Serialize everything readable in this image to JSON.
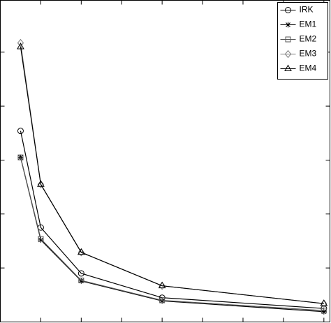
{
  "chart_data": {
    "type": "line",
    "x": [
      0.5,
      1,
      2,
      4,
      8
    ],
    "xlim": [
      0,
      8.15
    ],
    "xticks": [
      1,
      2,
      3,
      4,
      5,
      6,
      7,
      8
    ],
    "ylim": [
      0,
      5.96
    ],
    "yticks": [
      1,
      2,
      3,
      4,
      5
    ],
    "legend": "upper right",
    "series": [
      {
        "name": "IRK",
        "color": "#000000",
        "marker": "circle",
        "values": [
          3.54,
          1.75,
          0.9,
          0.45,
          0.25
        ]
      },
      {
        "name": "EM1",
        "color": "#000000",
        "marker": "asterisk",
        "values": [
          3.05,
          1.52,
          0.76,
          0.39,
          0.19
        ]
      },
      {
        "name": "EM2",
        "color": "#555555",
        "marker": "square",
        "values": [
          3.05,
          1.54,
          0.77,
          0.4,
          0.21
        ]
      },
      {
        "name": "EM3",
        "color": "#777777",
        "marker": "diamond",
        "values": [
          5.17,
          2.55,
          1.29,
          0.67,
          0.34
        ]
      },
      {
        "name": "EM4",
        "color": "#000000",
        "marker": "triangle",
        "values": [
          5.1,
          2.55,
          1.29,
          0.67,
          0.34
        ]
      }
    ]
  }
}
